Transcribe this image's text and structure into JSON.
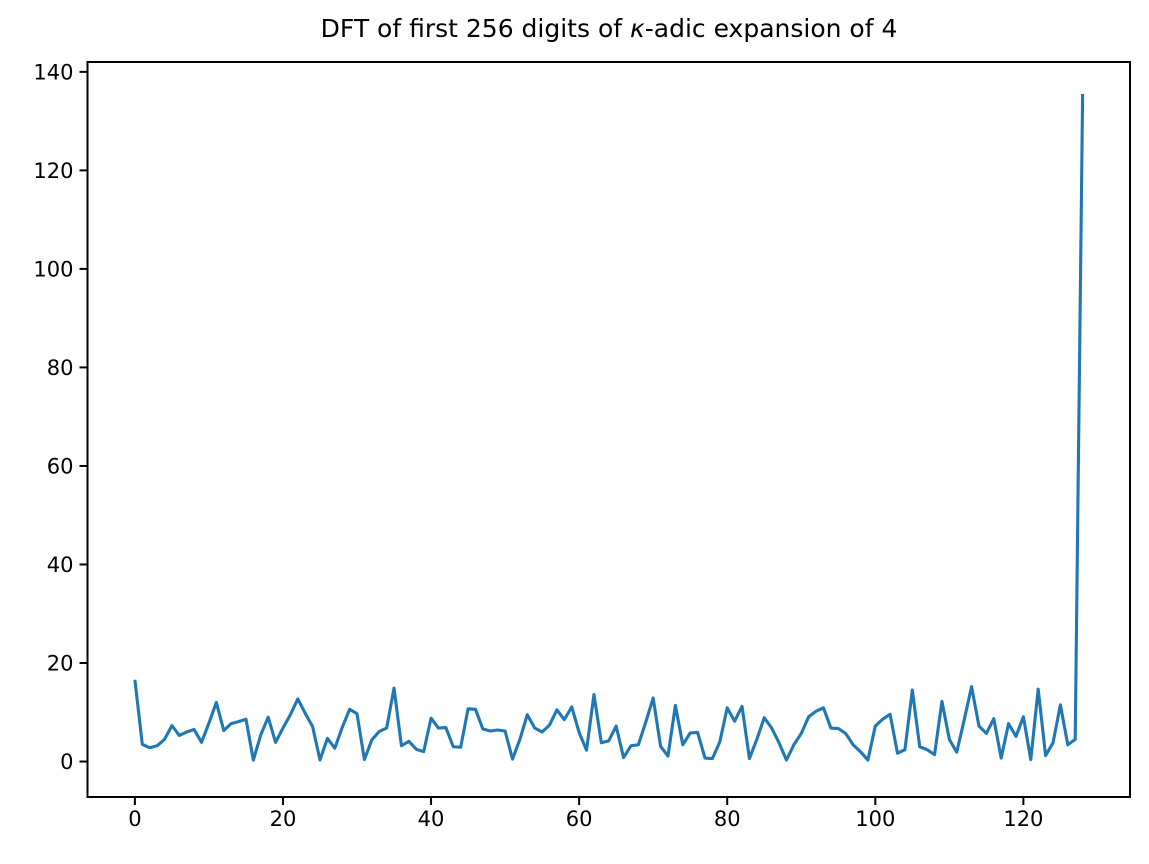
{
  "window": {
    "background": "#ffffff"
  },
  "title": {
    "prefix": "DFT of first 256 digits of ",
    "kappa": "κ",
    "suffix": "-adic expansion of 4"
  },
  "chart_data": {
    "type": "line",
    "title": "DFT of first 256 digits of κ-adic expansion of 4",
    "xlabel": "",
    "ylabel": "",
    "x_start": 0,
    "x_step": 1,
    "values": [
      16.6,
      3.5,
      2.8,
      3.2,
      4.5,
      7.3,
      5.3,
      6.0,
      6.5,
      3.9,
      7.8,
      12.0,
      6.3,
      7.7,
      8.1,
      8.6,
      0.3,
      5.4,
      9.0,
      3.9,
      6.8,
      9.5,
      12.7,
      9.8,
      7.1,
      0.3,
      4.7,
      2.7,
      6.9,
      10.6,
      9.7,
      0.4,
      4.4,
      6.1,
      6.8,
      14.9,
      3.2,
      4.1,
      2.5,
      2.0,
      8.8,
      6.8,
      6.9,
      3.0,
      2.9,
      10.7,
      10.6,
      6.6,
      6.2,
      6.4,
      6.2,
      0.5,
      4.5,
      9.5,
      6.8,
      6.0,
      7.4,
      10.5,
      8.5,
      11.1,
      5.9,
      2.3,
      13.6,
      3.8,
      4.2,
      7.2,
      0.8,
      3.2,
      3.4,
      8.0,
      12.9,
      3.1,
      1.1,
      11.4,
      3.4,
      5.8,
      5.9,
      0.7,
      0.6,
      4.0,
      10.9,
      8.2,
      11.2,
      0.6,
      4.5,
      8.9,
      6.8,
      3.8,
      0.3,
      3.4,
      5.7,
      9.1,
      10.2,
      10.9,
      6.8,
      6.7,
      5.7,
      3.4,
      2.0,
      0.3,
      7.2,
      8.6,
      9.6,
      1.7,
      2.4,
      14.5,
      3.0,
      2.4,
      1.4,
      12.2,
      4.5,
      1.9,
      8.4,
      15.2,
      7.2,
      5.7,
      8.7,
      0.7,
      7.7,
      5.1,
      9.1,
      0.4,
      14.7,
      1.2,
      3.8,
      11.5,
      3.4,
      4.5,
      135.5
    ],
    "x_ticks": [
      0,
      20,
      40,
      60,
      80,
      100,
      120
    ],
    "y_ticks": [
      0,
      20,
      40,
      60,
      80,
      100,
      120,
      140
    ],
    "xlim": [
      -6.4,
      134.4
    ],
    "ylim": [
      -7.2,
      142.0
    ],
    "grid": false,
    "legend_position": "none",
    "line_color": "#1f77b4",
    "axes_color": "#000000"
  }
}
